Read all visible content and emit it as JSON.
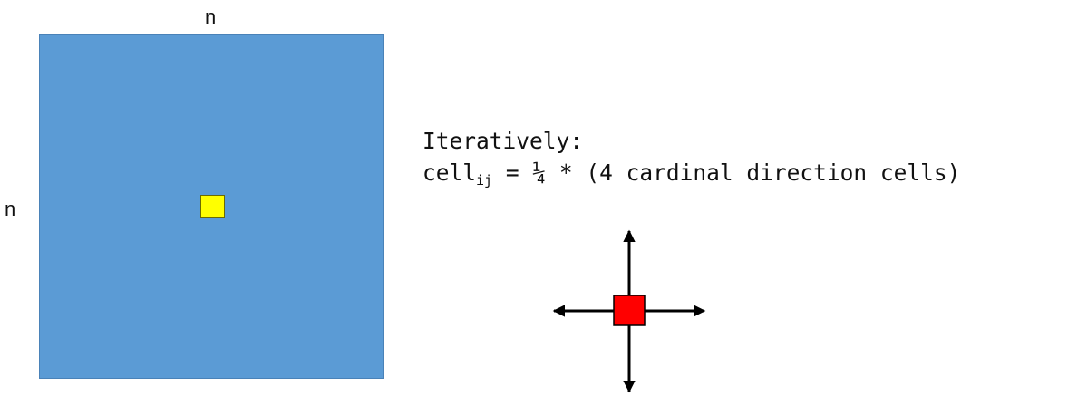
{
  "grid": {
    "top_label": "n",
    "left_label": "n",
    "fill_color": "#5b9bd5",
    "center_cell_color": "#ffff00"
  },
  "description": {
    "line1": "Iteratively:",
    "formula_prefix": "cell",
    "formula_subscript": "ij",
    "formula_suffix": " = ¼ * (4 cardinal direction cells)"
  },
  "stencil": {
    "center_color": "#ff0000",
    "arrow_color": "#000000",
    "arrow_directions": [
      "up",
      "down",
      "left",
      "right"
    ]
  }
}
